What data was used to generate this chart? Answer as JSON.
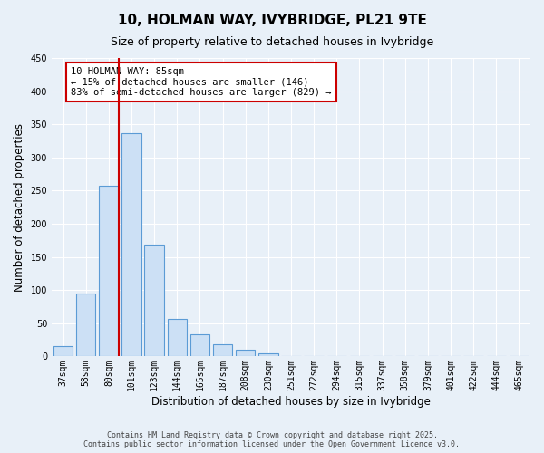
{
  "title": "10, HOLMAN WAY, IVYBRIDGE, PL21 9TE",
  "subtitle": "Size of property relative to detached houses in Ivybridge",
  "xlabel": "Distribution of detached houses by size in Ivybridge",
  "ylabel": "Number of detached properties",
  "bar_labels": [
    "37sqm",
    "58sqm",
    "80sqm",
    "101sqm",
    "123sqm",
    "144sqm",
    "165sqm",
    "187sqm",
    "208sqm",
    "230sqm",
    "251sqm",
    "272sqm",
    "294sqm",
    "315sqm",
    "337sqm",
    "358sqm",
    "379sqm",
    "401sqm",
    "422sqm",
    "444sqm",
    "465sqm"
  ],
  "bar_values": [
    15,
    95,
    257,
    337,
    168,
    57,
    34,
    19,
    10,
    5,
    1,
    1,
    0,
    0,
    0,
    0,
    0,
    0,
    0,
    0,
    0
  ],
  "bar_color": "#cce0f5",
  "bar_edge_color": "#5b9bd5",
  "vline_color": "#cc0000",
  "annotation_text": "10 HOLMAN WAY: 85sqm\n← 15% of detached houses are smaller (146)\n83% of semi-detached houses are larger (829) →",
  "annotation_box_color": "#ffffff",
  "annotation_box_edgecolor": "#cc0000",
  "ylim": [
    0,
    450
  ],
  "yticks": [
    0,
    50,
    100,
    150,
    200,
    250,
    300,
    350,
    400,
    450
  ],
  "background_color": "#e8f0f8",
  "plot_background": "#e8f0f8",
  "footer_line1": "Contains HM Land Registry data © Crown copyright and database right 2025.",
  "footer_line2": "Contains public sector information licensed under the Open Government Licence v3.0.",
  "title_fontsize": 11,
  "subtitle_fontsize": 9,
  "tick_fontsize": 7,
  "xlabel_fontsize": 8.5,
  "ylabel_fontsize": 8.5,
  "annotation_fontsize": 7.5
}
